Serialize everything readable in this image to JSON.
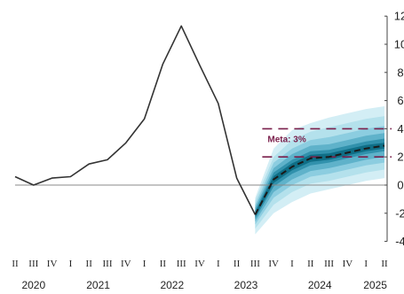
{
  "chart_data": {
    "type": "line",
    "title": "",
    "xlabel": "",
    "ylabel": "",
    "ylim": [
      -4,
      12
    ],
    "y_ticks": [
      "12",
      "10",
      "8",
      "6",
      "4",
      "2",
      "0",
      "-2",
      "-4"
    ],
    "y_axis_position": "right",
    "grid": false,
    "legend": "none",
    "quarter_labels": [
      "II",
      "III",
      "IV",
      "I",
      "II",
      "III",
      "IV",
      "I",
      "II",
      "III",
      "IV",
      "I",
      "II",
      "III",
      "IV",
      "I",
      "II",
      "III",
      "IV",
      "I",
      "II"
    ],
    "year_labels": [
      {
        "label": "2020",
        "start": 0,
        "end": 2
      },
      {
        "label": "2021",
        "start": 3,
        "end": 6
      },
      {
        "label": "2022",
        "start": 7,
        "end": 10
      },
      {
        "label": "2023",
        "start": 11,
        "end": 14
      },
      {
        "label": "2024",
        "start": 15,
        "end": 18
      },
      {
        "label": "2025",
        "start": 19,
        "end": 20
      }
    ],
    "series": [
      {
        "name": "",
        "style": "solid",
        "color": "#333333",
        "x": [
          0,
          1,
          2,
          3,
          4,
          5,
          6,
          7,
          8,
          9,
          10,
          11,
          12,
          13
        ],
        "values": [
          0.6,
          0.0,
          0.5,
          0.6,
          1.5,
          1.8,
          3.0,
          4.7,
          8.6,
          11.3,
          8.5,
          5.8,
          0.5,
          -2.1
        ]
      },
      {
        "name": "",
        "style": "dashed",
        "color": "#1a1a1a",
        "x": [
          13,
          14,
          15,
          16,
          17,
          18,
          19,
          20
        ],
        "values": [
          -2.1,
          0.4,
          1.3,
          1.9,
          2.0,
          2.3,
          2.6,
          2.8
        ]
      }
    ],
    "fan": {
      "x": [
        13,
        14,
        15,
        16,
        17,
        18,
        19,
        20
      ],
      "center": [
        -2.1,
        0.4,
        1.3,
        1.9,
        2.0,
        2.3,
        2.6,
        2.8
      ],
      "bands": [
        {
          "lower": [
            -3.5,
            -2.0,
            -1.2,
            -0.6,
            -0.3,
            0.0,
            0.3,
            0.5
          ],
          "upper": [
            -0.9,
            2.6,
            3.9,
            4.4,
            4.8,
            5.1,
            5.4,
            5.6
          ],
          "color": "#d3eef5"
        },
        {
          "lower": [
            -3.1,
            -1.4,
            -0.5,
            0.1,
            0.3,
            0.6,
            0.9,
            1.1
          ],
          "upper": [
            -1.1,
            2.0,
            3.2,
            3.8,
            4.1,
            4.4,
            4.7,
            4.9
          ],
          "color": "#b4e1ec"
        },
        {
          "lower": [
            -2.8,
            -0.9,
            0.0,
            0.6,
            0.8,
            1.1,
            1.4,
            1.6
          ],
          "upper": [
            -1.4,
            1.6,
            2.6,
            3.2,
            3.4,
            3.7,
            4.0,
            4.2
          ],
          "color": "#8ccde0"
        },
        {
          "lower": [
            -2.6,
            -0.5,
            0.4,
            1.0,
            1.2,
            1.5,
            1.8,
            2.0
          ],
          "upper": [
            -1.6,
            1.2,
            2.2,
            2.8,
            2.9,
            3.2,
            3.5,
            3.7
          ],
          "color": "#5fb2ca"
        },
        {
          "lower": [
            -2.4,
            -0.1,
            0.8,
            1.4,
            1.6,
            1.9,
            2.2,
            2.4
          ],
          "upper": [
            -1.8,
            0.9,
            1.8,
            2.4,
            2.5,
            2.8,
            3.1,
            3.3
          ],
          "color": "#3191ac"
        },
        {
          "lower": [
            -2.25,
            0.15,
            1.05,
            1.65,
            1.8,
            2.1,
            2.4,
            2.6
          ],
          "upper": [
            -1.95,
            0.65,
            1.55,
            2.15,
            2.25,
            2.55,
            2.85,
            3.0
          ],
          "color": "#0f6e86"
        }
      ]
    },
    "target_band": {
      "label": "Meta: 3%",
      "upper": 4,
      "lower": 2,
      "x_start": 13.0,
      "x_end": 20.0,
      "color": "#7a1f4b"
    }
  }
}
